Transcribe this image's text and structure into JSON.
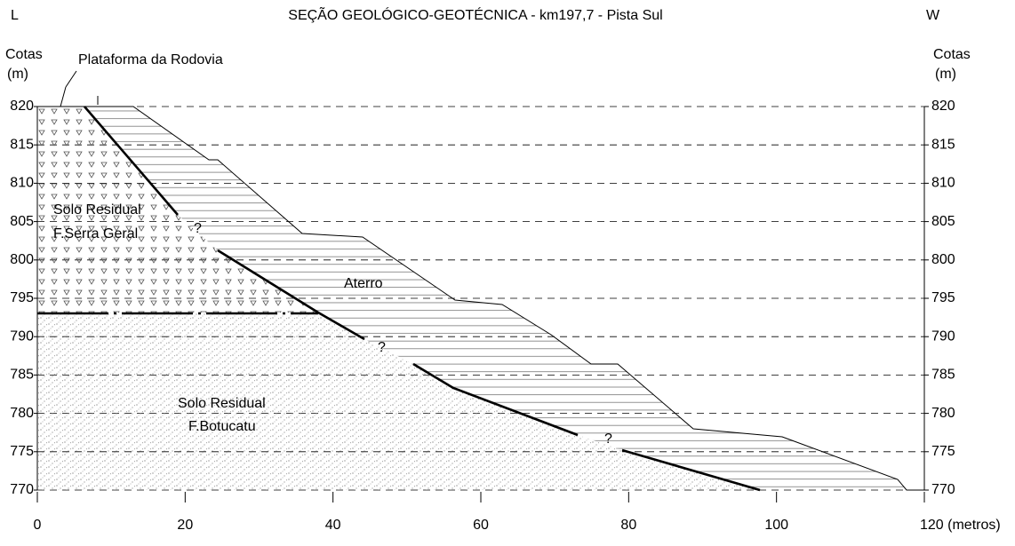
{
  "title": "SEÇÃO GEOLÓGICO-GEOTÉCNICA - km197,7 - Pista Sul",
  "left_end": "L",
  "right_end": "W",
  "left_axis": {
    "title": [
      "Cotas",
      "(m)"
    ],
    "ticks": [
      820,
      815,
      810,
      805,
      800,
      795,
      790,
      785,
      780,
      775,
      770
    ]
  },
  "right_axis": {
    "title": [
      "Cotas",
      "(m)"
    ],
    "ticks": [
      820,
      815,
      810,
      805,
      800,
      795,
      790,
      785,
      780,
      775,
      770
    ]
  },
  "ylim": [
    770,
    820
  ],
  "xlim": [
    0,
    120
  ],
  "x_axis": {
    "ticks": [
      0,
      20,
      40,
      60,
      80,
      100,
      {
        "value": 120,
        "label": "120 (metros)"
      }
    ]
  },
  "labels": {
    "platform": "Plataforma da Rodovia",
    "serra_geral": [
      "Solo Residual",
      "F.Serra Geral"
    ],
    "aterro": "Aterro",
    "botucatu": [
      "Solo Residual",
      "F.Botucatu"
    ],
    "unknown": [
      "?",
      "?",
      "?"
    ]
  }
}
